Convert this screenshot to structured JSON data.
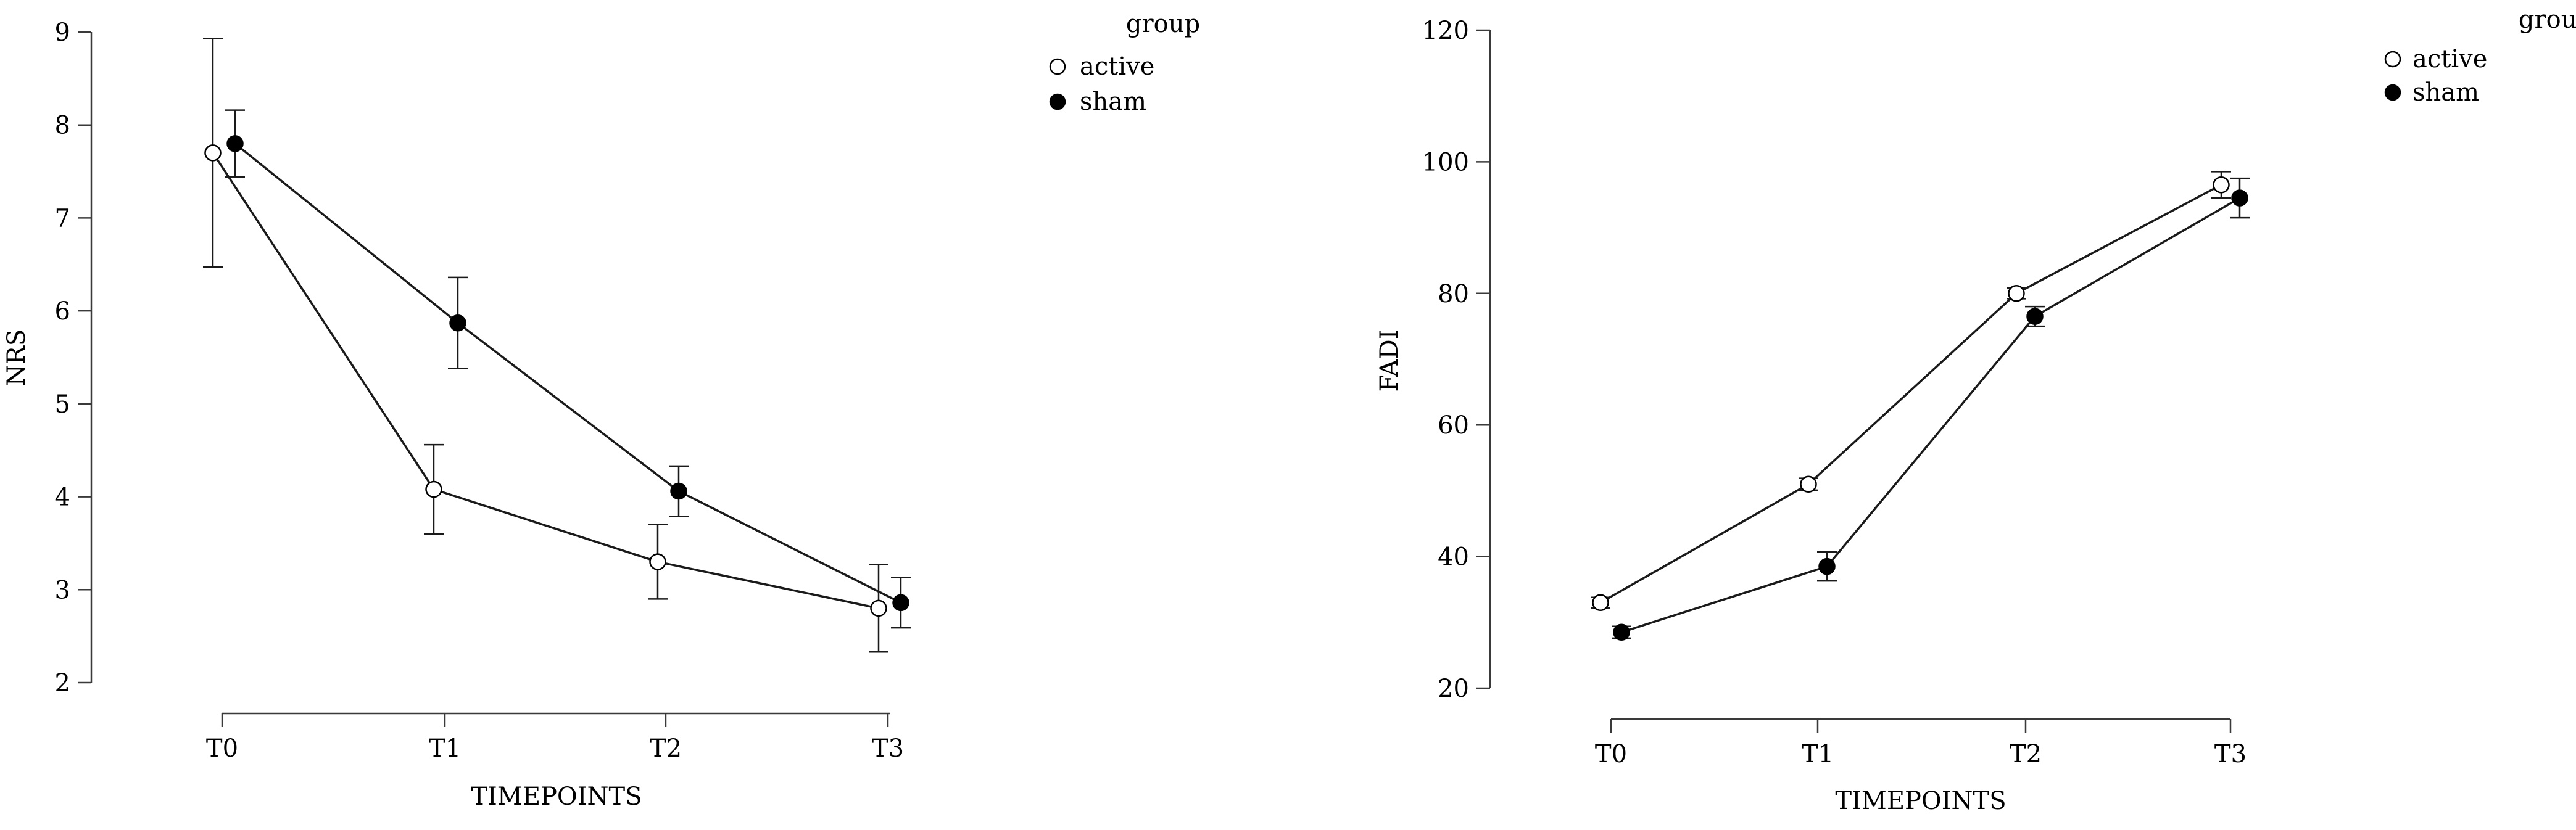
{
  "chart_data": [
    {
      "type": "line",
      "xlabel": "TIMEPOINTS",
      "ylabel": "NRS",
      "categories": [
        "T0",
        "T1",
        "T2",
        "T3"
      ],
      "ylim": [
        2,
        9
      ],
      "yticks": [
        2,
        3,
        4,
        5,
        6,
        7,
        8,
        9
      ],
      "grid": false,
      "legend": {
        "title": "group",
        "placement": "top-right"
      },
      "series": [
        {
          "name": "active",
          "marker": "open-circle",
          "values": [
            7.7,
            4.08,
            3.3,
            2.8
          ],
          "errors": [
            1.23,
            0.48,
            0.4,
            0.47
          ]
        },
        {
          "name": "sham",
          "marker": "filled-circle",
          "values": [
            7.8,
            5.87,
            4.06,
            2.86
          ],
          "errors": [
            0.36,
            0.49,
            0.27,
            0.27
          ]
        }
      ]
    },
    {
      "type": "line",
      "xlabel": "TIMEPOINTS",
      "ylabel": "FADI",
      "categories": [
        "T0",
        "T1",
        "T2",
        "T3"
      ],
      "ylim": [
        20,
        120
      ],
      "yticks": [
        20,
        40,
        60,
        80,
        100,
        120
      ],
      "grid": false,
      "legend": {
        "title": "group",
        "placement": "top-right"
      },
      "series": [
        {
          "name": "active",
          "marker": "open-circle",
          "values": [
            33.0,
            51.0,
            80.0,
            96.5
          ],
          "errors": [
            0.8,
            0.9,
            0.8,
            2.0
          ]
        },
        {
          "name": "sham",
          "marker": "filled-circle",
          "values": [
            28.5,
            38.5,
            76.5,
            94.5
          ],
          "errors": [
            0.9,
            2.2,
            1.5,
            3.0
          ]
        }
      ]
    }
  ]
}
